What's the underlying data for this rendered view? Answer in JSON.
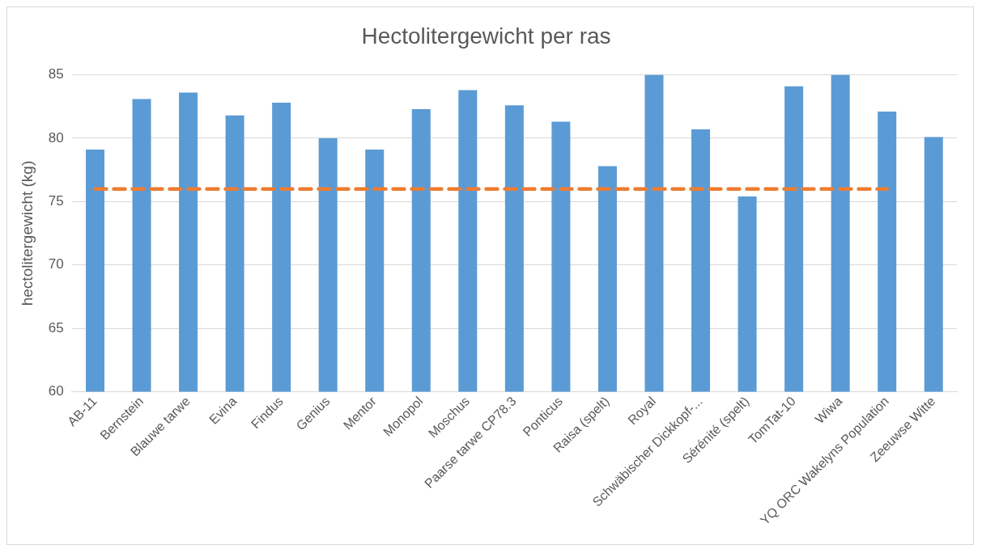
{
  "chart_data": {
    "type": "bar",
    "title": "Hectolitergewicht per ras",
    "ylabel": "hectolitergewicht (kg)",
    "categories": [
      "AB-11",
      "Bernstein",
      "Blauwe tarwe",
      "Evina",
      "Findus",
      "Genius",
      "Mentor",
      "Monopol",
      "Moschus",
      "Paarse tarwe CP78.3",
      "Ponticus",
      "Raisa (spelt)",
      "Royal",
      "Schwäbischer Dickkopf-...",
      "Sérénité (spelt)",
      "TomTat-10",
      "Wiwa",
      "YQ ORC Wakelyns Population",
      "Zeeuwse Witte"
    ],
    "series": [
      {
        "color": "#5b9bd5",
        "values": [
          79.1,
          83.1,
          83.6,
          81.8,
          82.8,
          80.0,
          79.1,
          82.3,
          83.8,
          82.6,
          81.3,
          77.8,
          85.0,
          80.7,
          75.4,
          84.1,
          85.0,
          82.1,
          80.1
        ]
      },
      {
        "type": "line",
        "color": "#ed7d31",
        "line_style": "dashed",
        "marker": "none",
        "values": [
          76,
          76,
          76,
          76,
          76,
          76,
          76,
          76,
          76,
          76,
          76,
          76,
          76,
          76,
          76,
          76,
          76,
          76,
          null
        ]
      }
    ],
    "ylim": [
      60,
      85
    ],
    "yticks": [
      60,
      65,
      70,
      75,
      80,
      85
    ],
    "grid": "y",
    "legend": false
  }
}
